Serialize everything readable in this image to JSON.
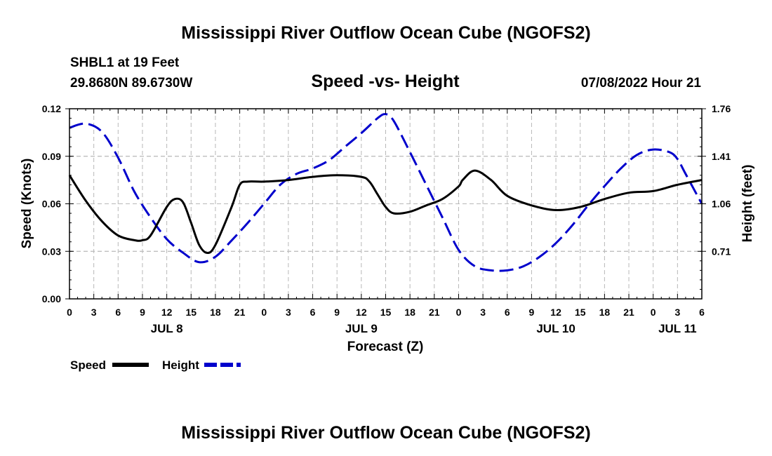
{
  "page": {
    "main_title": "Mississippi River Outflow Ocean Cube (NGOFS2)",
    "footer_title": "Mississippi River Outflow Ocean Cube (NGOFS2)",
    "station_line1": "SHBL1 at 19 Feet",
    "station_line2": "29.8680N  89.6730W",
    "plot_title": "Speed -vs- Height",
    "date_label": "07/08/2022 Hour 21"
  },
  "chart_data": {
    "type": "line",
    "xlabel": "Forecast (Z)",
    "ylabel_left": "Speed (Knots)",
    "ylabel_right": "Height (feet)",
    "x_range": [
      0,
      78
    ],
    "x_tick_labels": [
      "0",
      "3",
      "6",
      "9",
      "12",
      "15",
      "18",
      "21",
      "0",
      "3",
      "6",
      "9",
      "12",
      "15",
      "18",
      "21",
      "0",
      "3",
      "6",
      "9",
      "12",
      "15",
      "18",
      "21",
      "0",
      "3",
      "6"
    ],
    "day_labels": [
      {
        "label": "JUL 8",
        "x": 12
      },
      {
        "label": "JUL 9",
        "x": 36
      },
      {
        "label": "JUL 10",
        "x": 60
      },
      {
        "label": "JUL 11",
        "x": 75
      }
    ],
    "y_left": {
      "range": [
        0,
        0.12
      ],
      "ticks": [
        "0.00",
        "0.03",
        "0.06",
        "0.09",
        "0.12"
      ]
    },
    "y_right": {
      "range": [
        0.36,
        1.76
      ],
      "ticks": [
        "0.71",
        "1.06",
        "1.41",
        "1.76"
      ]
    },
    "legend": [
      {
        "label": "Speed",
        "color": "#000000",
        "style": "solid"
      },
      {
        "label": "Height",
        "color": "#0000cc",
        "style": "dashed"
      }
    ],
    "series": [
      {
        "name": "Speed",
        "axis": "left",
        "color": "#000000",
        "x": [
          0,
          2,
          4,
          6,
          8,
          9,
          10,
          12,
          13,
          14,
          15,
          16,
          17,
          18,
          20,
          21,
          22,
          24,
          27,
          30,
          33,
          36,
          37,
          38,
          39,
          40,
          42,
          44,
          46,
          48,
          48.5,
          50,
          52,
          54,
          57,
          60,
          63,
          66,
          69,
          72,
          75,
          78
        ],
        "y": [
          0.078,
          0.062,
          0.049,
          0.04,
          0.037,
          0.037,
          0.04,
          0.058,
          0.063,
          0.061,
          0.048,
          0.034,
          0.029,
          0.034,
          0.058,
          0.072,
          0.074,
          0.074,
          0.075,
          0.077,
          0.078,
          0.077,
          0.074,
          0.066,
          0.058,
          0.054,
          0.055,
          0.059,
          0.063,
          0.071,
          0.075,
          0.081,
          0.075,
          0.065,
          0.059,
          0.056,
          0.058,
          0.063,
          0.067,
          0.068,
          0.072,
          0.075
        ]
      },
      {
        "name": "Height",
        "axis": "right",
        "color": "#0000cc",
        "x": [
          0,
          2,
          4,
          6,
          8,
          10,
          12,
          14,
          16,
          18,
          20,
          22,
          24,
          26,
          28,
          30,
          32,
          34,
          36,
          38,
          39,
          40,
          42,
          44,
          46,
          48,
          50,
          52,
          54,
          56,
          58,
          60,
          62,
          64,
          66,
          68,
          70,
          72,
          74,
          75,
          76,
          78
        ],
        "y": [
          1.62,
          1.65,
          1.59,
          1.4,
          1.15,
          0.96,
          0.8,
          0.7,
          0.63,
          0.67,
          0.79,
          0.92,
          1.06,
          1.2,
          1.28,
          1.32,
          1.38,
          1.48,
          1.58,
          1.69,
          1.72,
          1.67,
          1.44,
          1.2,
          0.96,
          0.72,
          0.6,
          0.57,
          0.57,
          0.6,
          0.67,
          0.77,
          0.9,
          1.05,
          1.19,
          1.32,
          1.42,
          1.46,
          1.44,
          1.39,
          1.28,
          1.06
        ]
      }
    ]
  }
}
